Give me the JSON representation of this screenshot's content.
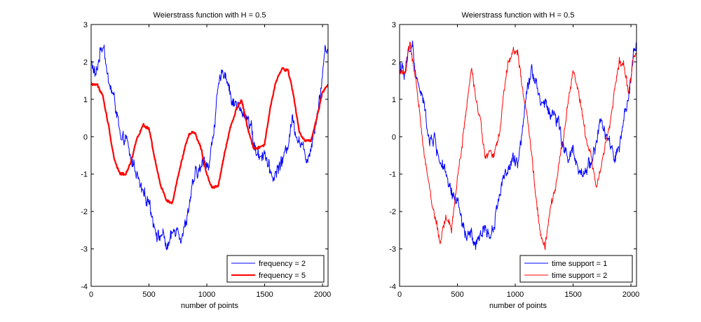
{
  "chart_data": [
    {
      "type": "line",
      "title": "Weierstrass function with H = 0.5",
      "xlabel": "number of points",
      "ylabel": "",
      "xlim": [
        0,
        2048
      ],
      "ylim": [
        -4,
        3
      ],
      "xticks": [
        "0",
        "500",
        "1000",
        "1500",
        "2000"
      ],
      "yticks": [
        "-4",
        "-3",
        "-2",
        "-1",
        "0",
        "1",
        "2",
        "3"
      ],
      "grid": false,
      "legend_position": "bottom-right",
      "series": [
        {
          "name": "frequency = 2",
          "color": "#0000ff",
          "roughness": "high",
          "x": [
            0,
            40,
            80,
            110,
            140,
            170,
            200,
            230,
            260,
            300,
            340,
            380,
            420,
            460,
            500,
            540,
            580,
            620,
            660,
            700,
            740,
            780,
            820,
            860,
            900,
            940,
            980,
            1020,
            1060,
            1100,
            1140,
            1180,
            1220,
            1260,
            1300,
            1340,
            1380,
            1420,
            1460,
            1500,
            1540,
            1580,
            1620,
            1660,
            1700,
            1740,
            1780,
            1820,
            1860,
            1900,
            1940,
            1980,
            2020,
            2048
          ],
          "values": [
            2.0,
            1.6,
            2.3,
            2.5,
            1.6,
            1.3,
            1.0,
            0.5,
            -0.2,
            0.0,
            -0.6,
            -0.8,
            -1.3,
            -1.6,
            -1.7,
            -2.3,
            -2.7,
            -2.6,
            -3.0,
            -2.6,
            -2.4,
            -2.7,
            -2.3,
            -1.6,
            -1.0,
            -0.9,
            -0.6,
            -0.8,
            0.2,
            1.3,
            1.8,
            1.5,
            0.9,
            0.9,
            0.6,
            0.6,
            0.3,
            -0.4,
            -0.5,
            -0.4,
            -0.9,
            -1.1,
            -0.8,
            -0.6,
            -0.2,
            0.5,
            0.0,
            -0.2,
            -0.6,
            -0.3,
            0.4,
            1.1,
            2.3,
            2.4
          ]
        },
        {
          "name": "frequency = 5",
          "color": "#ff0000",
          "roughness": "low",
          "x": [
            0,
            50,
            100,
            150,
            200,
            250,
            300,
            350,
            400,
            450,
            500,
            550,
            600,
            650,
            700,
            750,
            800,
            850,
            900,
            950,
            1000,
            1050,
            1100,
            1150,
            1200,
            1250,
            1300,
            1350,
            1400,
            1450,
            1500,
            1550,
            1600,
            1650,
            1700,
            1750,
            1800,
            1850,
            1900,
            1950,
            2000,
            2048
          ],
          "values": [
            1.4,
            1.4,
            1.1,
            0.3,
            -0.6,
            -1.0,
            -1.0,
            -0.6,
            0.0,
            0.3,
            0.2,
            -0.6,
            -1.3,
            -1.7,
            -1.8,
            -1.1,
            -0.4,
            0.1,
            0.1,
            -0.3,
            -1.0,
            -1.4,
            -1.3,
            -0.5,
            0.2,
            0.7,
            1.0,
            0.3,
            -0.3,
            -0.3,
            -0.2,
            0.8,
            1.5,
            1.8,
            1.8,
            1.1,
            0.1,
            -0.1,
            -0.1,
            0.5,
            1.2,
            1.4
          ]
        }
      ]
    },
    {
      "type": "line",
      "title": "Weierstrass function with H = 0.5",
      "xlabel": "number of points",
      "ylabel": "",
      "xlim": [
        0,
        2048
      ],
      "ylim": [
        -4,
        3
      ],
      "xticks": [
        "0",
        "500",
        "1000",
        "1500",
        "2000"
      ],
      "yticks": [
        "-4",
        "-3",
        "-2",
        "-1",
        "0",
        "1",
        "2",
        "3"
      ],
      "grid": false,
      "legend_position": "bottom-right",
      "series": [
        {
          "name": "time support = 1",
          "color": "#0000ff",
          "roughness": "high",
          "x": [
            0,
            40,
            80,
            110,
            140,
            170,
            200,
            230,
            260,
            300,
            340,
            380,
            420,
            460,
            500,
            540,
            580,
            620,
            660,
            700,
            740,
            780,
            820,
            860,
            900,
            940,
            980,
            1020,
            1060,
            1100,
            1140,
            1180,
            1220,
            1260,
            1300,
            1340,
            1380,
            1420,
            1460,
            1500,
            1540,
            1580,
            1620,
            1660,
            1700,
            1740,
            1780,
            1820,
            1860,
            1900,
            1940,
            1980,
            2020,
            2048
          ],
          "values": [
            2.0,
            1.6,
            2.3,
            2.5,
            1.6,
            1.3,
            1.0,
            0.5,
            -0.2,
            0.0,
            -0.6,
            -0.8,
            -1.3,
            -1.6,
            -1.7,
            -2.3,
            -2.7,
            -2.6,
            -3.0,
            -2.6,
            -2.4,
            -2.7,
            -2.3,
            -1.6,
            -1.0,
            -0.9,
            -0.6,
            -0.8,
            0.2,
            1.3,
            1.8,
            1.5,
            0.9,
            0.9,
            0.6,
            0.6,
            0.3,
            -0.4,
            -0.5,
            -0.4,
            -0.9,
            -1.1,
            -0.8,
            -0.6,
            -0.2,
            0.5,
            0.0,
            -0.2,
            -0.6,
            -0.3,
            0.4,
            1.1,
            2.3,
            2.4
          ]
        },
        {
          "name": "time support = 2",
          "color": "#ff0000",
          "roughness": "medium",
          "x": [
            0,
            50,
            90,
            120,
            160,
            200,
            240,
            280,
            320,
            350,
            400,
            450,
            500,
            540,
            580,
            620,
            660,
            700,
            740,
            780,
            820,
            860,
            900,
            940,
            980,
            1020,
            1060,
            1100,
            1140,
            1180,
            1220,
            1260,
            1300,
            1340,
            1380,
            1420,
            1460,
            1500,
            1540,
            1580,
            1620,
            1660,
            1700,
            1740,
            1780,
            1820,
            1860,
            1900,
            1940,
            1980,
            2020,
            2048
          ],
          "values": [
            1.8,
            1.7,
            2.5,
            1.9,
            1.0,
            -0.1,
            -1.0,
            -1.8,
            -2.3,
            -2.9,
            -2.1,
            -2.5,
            -1.1,
            -0.2,
            0.8,
            1.8,
            1.0,
            0.5,
            -0.6,
            -0.4,
            -0.5,
            0.0,
            1.2,
            2.0,
            2.3,
            2.3,
            1.3,
            0.6,
            -0.5,
            -1.6,
            -2.7,
            -2.9,
            -2.0,
            -1.5,
            -0.6,
            0.0,
            1.0,
            1.8,
            1.3,
            0.6,
            -0.2,
            -0.6,
            -1.3,
            -0.9,
            -0.2,
            0.4,
            1.3,
            2.0,
            1.9,
            1.1,
            2.1,
            2.2
          ]
        }
      ]
    }
  ]
}
